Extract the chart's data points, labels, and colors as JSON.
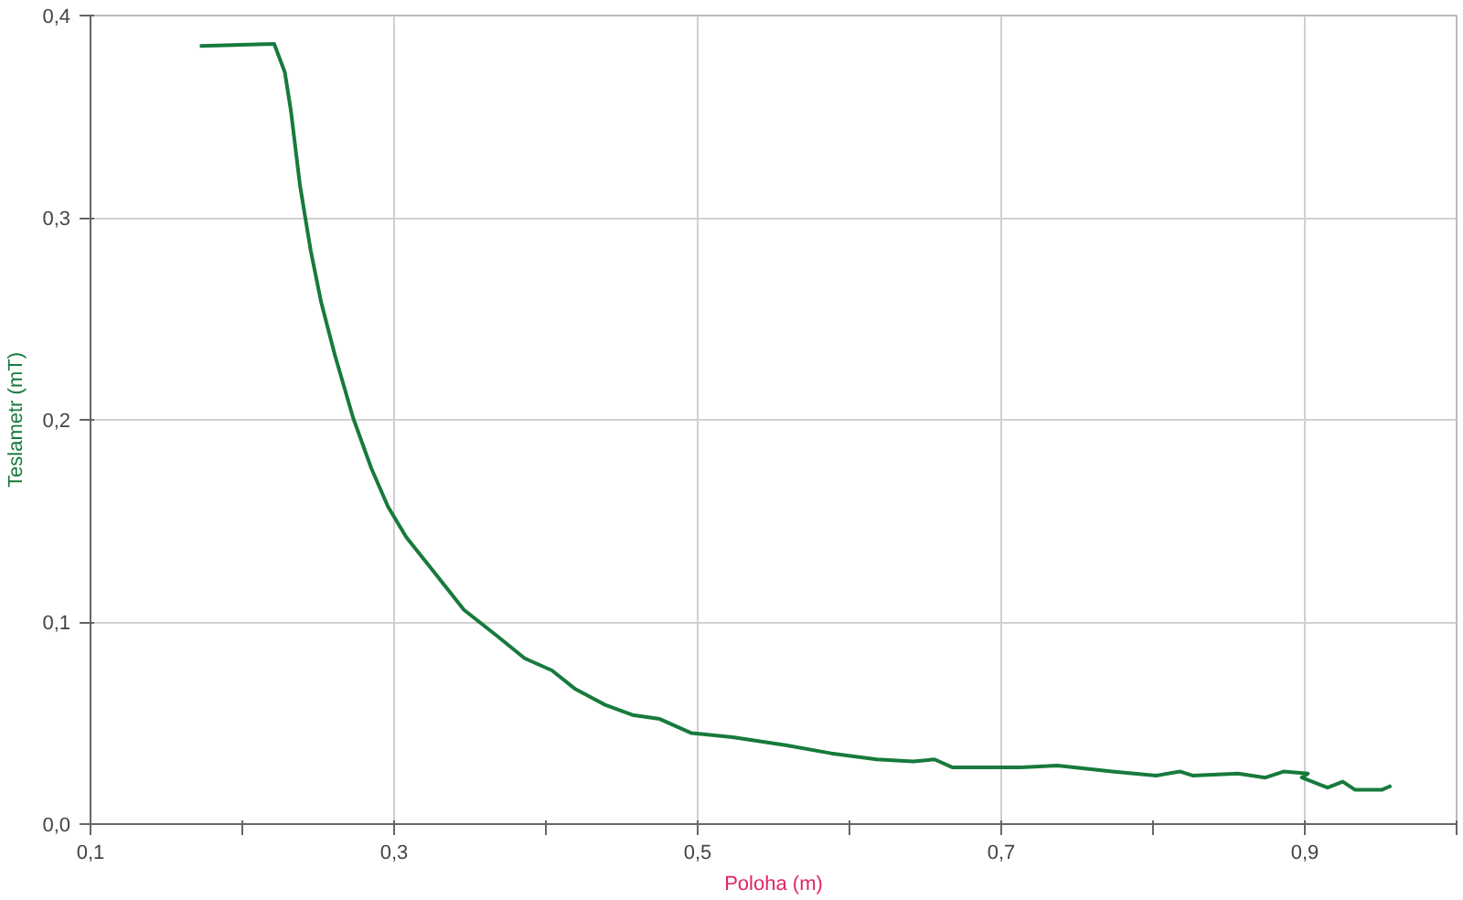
{
  "chart_data": {
    "type": "line",
    "xlabel": "Poloha (m)",
    "ylabel": "Teslametr (mT)",
    "xlim": [
      0.1,
      1.0
    ],
    "ylim": [
      0,
      0.4
    ],
    "xticks": [
      {
        "value": 0.1,
        "label": "0,1"
      },
      {
        "value": 0.2,
        "label": null
      },
      {
        "value": 0.3,
        "label": "0,3"
      },
      {
        "value": 0.4,
        "label": null
      },
      {
        "value": 0.5,
        "label": "0,5"
      },
      {
        "value": 0.6,
        "label": null
      },
      {
        "value": 0.7,
        "label": "0,7"
      },
      {
        "value": 0.8,
        "label": null
      },
      {
        "value": 0.9,
        "label": "0,9"
      },
      {
        "value": 1.0,
        "label": null
      }
    ],
    "yticks": [
      {
        "value": 0,
        "label": "0,0"
      },
      {
        "value": 0.1,
        "label": "0,1"
      },
      {
        "value": 0.2,
        "label": "0,2"
      },
      {
        "value": 0.3,
        "label": "0,3"
      },
      {
        "value": 0.4,
        "label": "0,4"
      }
    ],
    "grid": true,
    "line_style": "solid",
    "series": [
      {
        "color": "#177a3c",
        "x": [
          0.172,
          0.221,
          0.228,
          0.232,
          0.238,
          0.245,
          0.252,
          0.261,
          0.273,
          0.285,
          0.296,
          0.308,
          0.326,
          0.346,
          0.368,
          0.386,
          0.404,
          0.419,
          0.439,
          0.457,
          0.475,
          0.496,
          0.523,
          0.558,
          0.588,
          0.618,
          0.642,
          0.656,
          0.668,
          0.713,
          0.737,
          0.773,
          0.802,
          0.818,
          0.826,
          0.856,
          0.874,
          0.886,
          0.902,
          0.898,
          0.915,
          0.925,
          0.933,
          0.951,
          0.957
        ],
        "values": [
          0.385,
          0.386,
          0.372,
          0.353,
          0.316,
          0.284,
          0.258,
          0.232,
          0.201,
          0.176,
          0.157,
          0.142,
          0.125,
          0.106,
          0.093,
          0.082,
          0.076,
          0.067,
          0.059,
          0.054,
          0.052,
          0.045,
          0.043,
          0.039,
          0.035,
          0.032,
          0.031,
          0.032,
          0.028,
          0.028,
          0.029,
          0.026,
          0.024,
          0.026,
          0.024,
          0.025,
          0.023,
          0.026,
          0.025,
          0.023,
          0.018,
          0.021,
          0.017,
          0.017,
          0.019
        ]
      }
    ]
  }
}
